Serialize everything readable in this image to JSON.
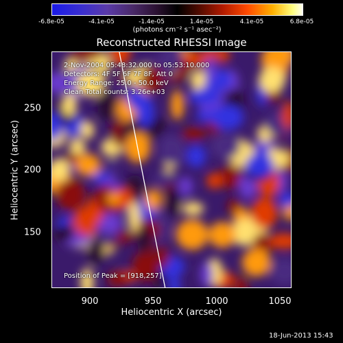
{
  "colorbar": {
    "ticks": [
      "-6.8e-05",
      "-4.1e-05",
      "-1.4e-05",
      "1.4e-05",
      "4.1e-05",
      "6.8e-05"
    ],
    "unit": "(photons cm⁻² s⁻¹ asec⁻²)"
  },
  "title": "Reconstructed RHESSI Image",
  "info": {
    "time_range": "2-Nov-2004 05:48:32.000 to 05:53:10.000",
    "detectors": "Detectors: 4F 5F 6F 7F 8F, Att 0",
    "energy": "Energy Range: 25.0 - 50.0 keV",
    "clean": "Clean     Total counts: 3.26e+03",
    "peak": "Position of Peak = [918,257]"
  },
  "chart_data": {
    "type": "heatmap",
    "title": "Reconstructed RHESSI Image",
    "xlabel": "Heliocentric X (arcsec)",
    "ylabel": "Heliocentric Y (arcsec)",
    "xlim": [
      870,
      1060
    ],
    "ylim": [
      105,
      292
    ],
    "x_ticks": [
      "900",
      "950",
      "1000",
      "1050"
    ],
    "y_ticks": [
      "250",
      "200",
      "150"
    ],
    "colorbar_range": [
      -6.8e-05,
      6.8e-05
    ],
    "peak": [
      918,
      257
    ]
  },
  "datestamp": "18-Jun-2013 15:43"
}
